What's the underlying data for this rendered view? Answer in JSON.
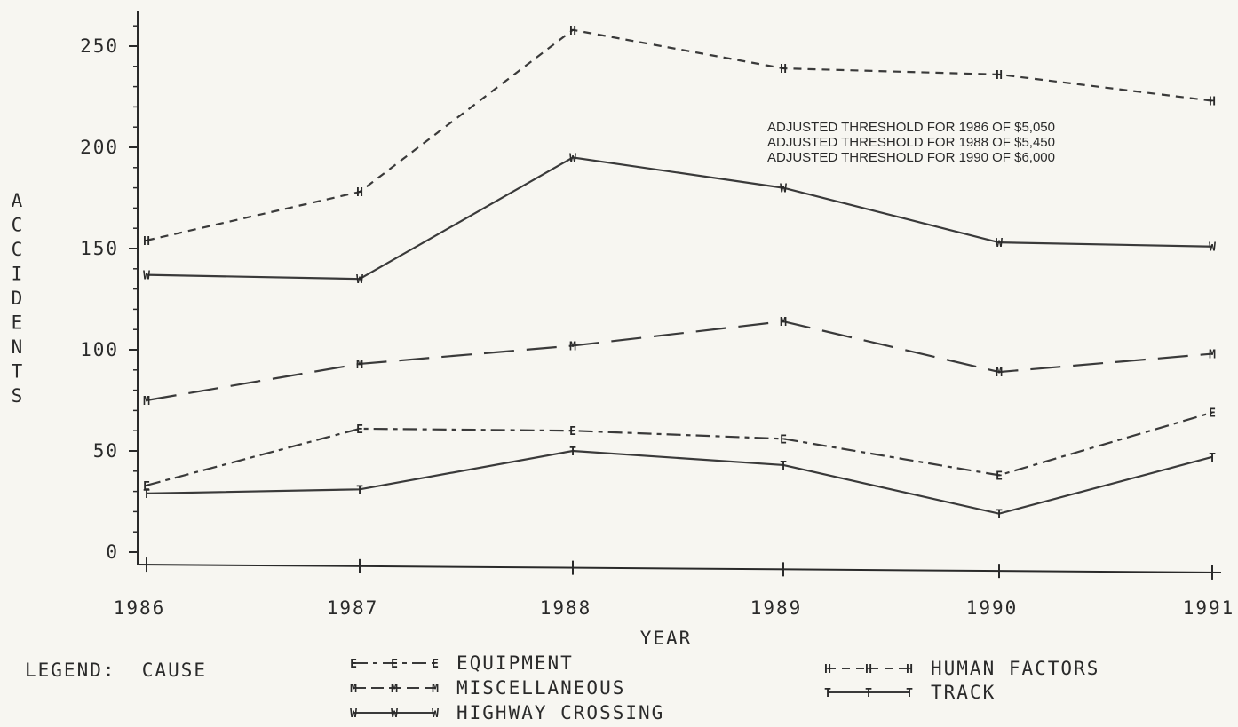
{
  "chart_data": {
    "type": "line",
    "xlabel": "YEAR",
    "ylabel": "ACCIDENTS",
    "x": [
      "1986",
      "1987",
      "1988",
      "1989",
      "1990",
      "1991"
    ],
    "ylim": [
      0,
      250
    ],
    "yticks": [
      "0",
      "50",
      "100",
      "150",
      "200",
      "250"
    ],
    "grid": false,
    "legend_position": "bottom",
    "legend_title": "LEGEND:  CAUSE",
    "annotations": [
      "ADJUSTED THRESHOLD FOR 1986 OF $5,050",
      "ADJUSTED THRESHOLD FOR 1988 OF $5,450",
      "ADJUSTED THRESHOLD FOR 1990 OF $6,000"
    ],
    "series": [
      {
        "name": "HUMAN FACTORS",
        "symbol": "H",
        "values": [
          154,
          178,
          258,
          239,
          236,
          223
        ]
      },
      {
        "name": "HIGHWAY CROSSING",
        "symbol": "W",
        "values": [
          137,
          135,
          195,
          180,
          153,
          151
        ]
      },
      {
        "name": "MISCELLANEOUS",
        "symbol": "M",
        "values": [
          75,
          93,
          102,
          114,
          89,
          98
        ]
      },
      {
        "name": "EQUIPMENT",
        "symbol": "E",
        "values": [
          33,
          61,
          60,
          56,
          38,
          69
        ]
      },
      {
        "name": "TRACK",
        "symbol": "T",
        "values": [
          29,
          31,
          50,
          43,
          19,
          47
        ]
      }
    ]
  }
}
